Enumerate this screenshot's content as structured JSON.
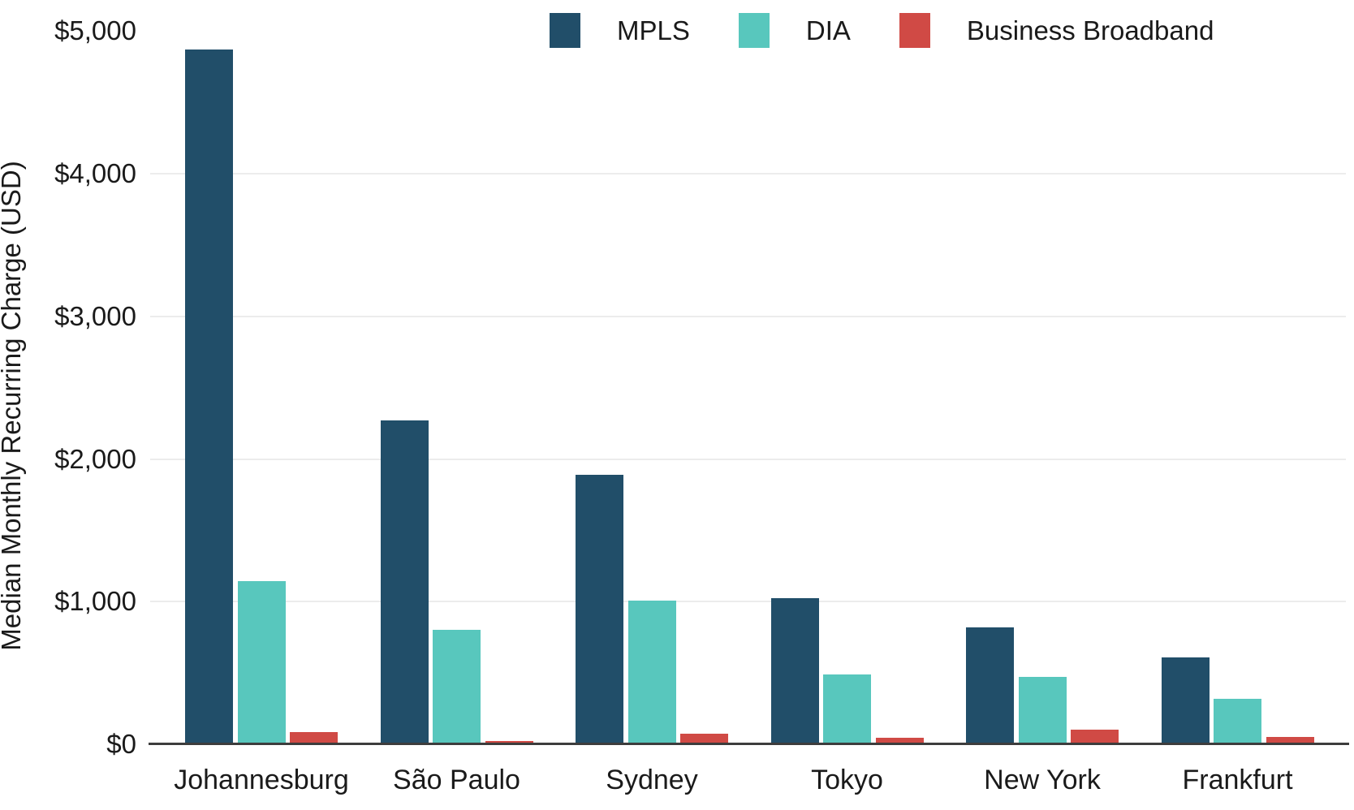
{
  "chart_data": {
    "type": "bar",
    "title": "",
    "xlabel": "",
    "ylabel": "Median Monthly Recurring Charge (USD)",
    "categories": [
      "Johannesburg",
      "São Paulo",
      "Sydney",
      "Tokyo",
      "New York",
      "Frankfurt"
    ],
    "series": [
      {
        "name": "MPLS",
        "color": "#214E69",
        "values": [
          4870,
          2270,
          1890,
          1025,
          820,
          610
        ]
      },
      {
        "name": "DIA",
        "color": "#58C7BD",
        "values": [
          1145,
          800,
          1010,
          490,
          470,
          320
        ]
      },
      {
        "name": "Business Broadband",
        "color": "#D04A45",
        "values": [
          85,
          25,
          75,
          45,
          100,
          50
        ]
      }
    ],
    "ylim": [
      0,
      5000
    ],
    "ytick_step": 1000,
    "ytick_labels": [
      "$0",
      "$1,000",
      "$2,000",
      "$3,000",
      "$4,000",
      "$5,000"
    ],
    "gridlines": "horizontal, at $1,000 through $4,000, light gray",
    "legend_position": "top-center",
    "colors": {
      "grid": "#ececec",
      "axis_line": "#3d3d3d",
      "text": "#1a1a1a",
      "background": "#ffffff"
    }
  }
}
